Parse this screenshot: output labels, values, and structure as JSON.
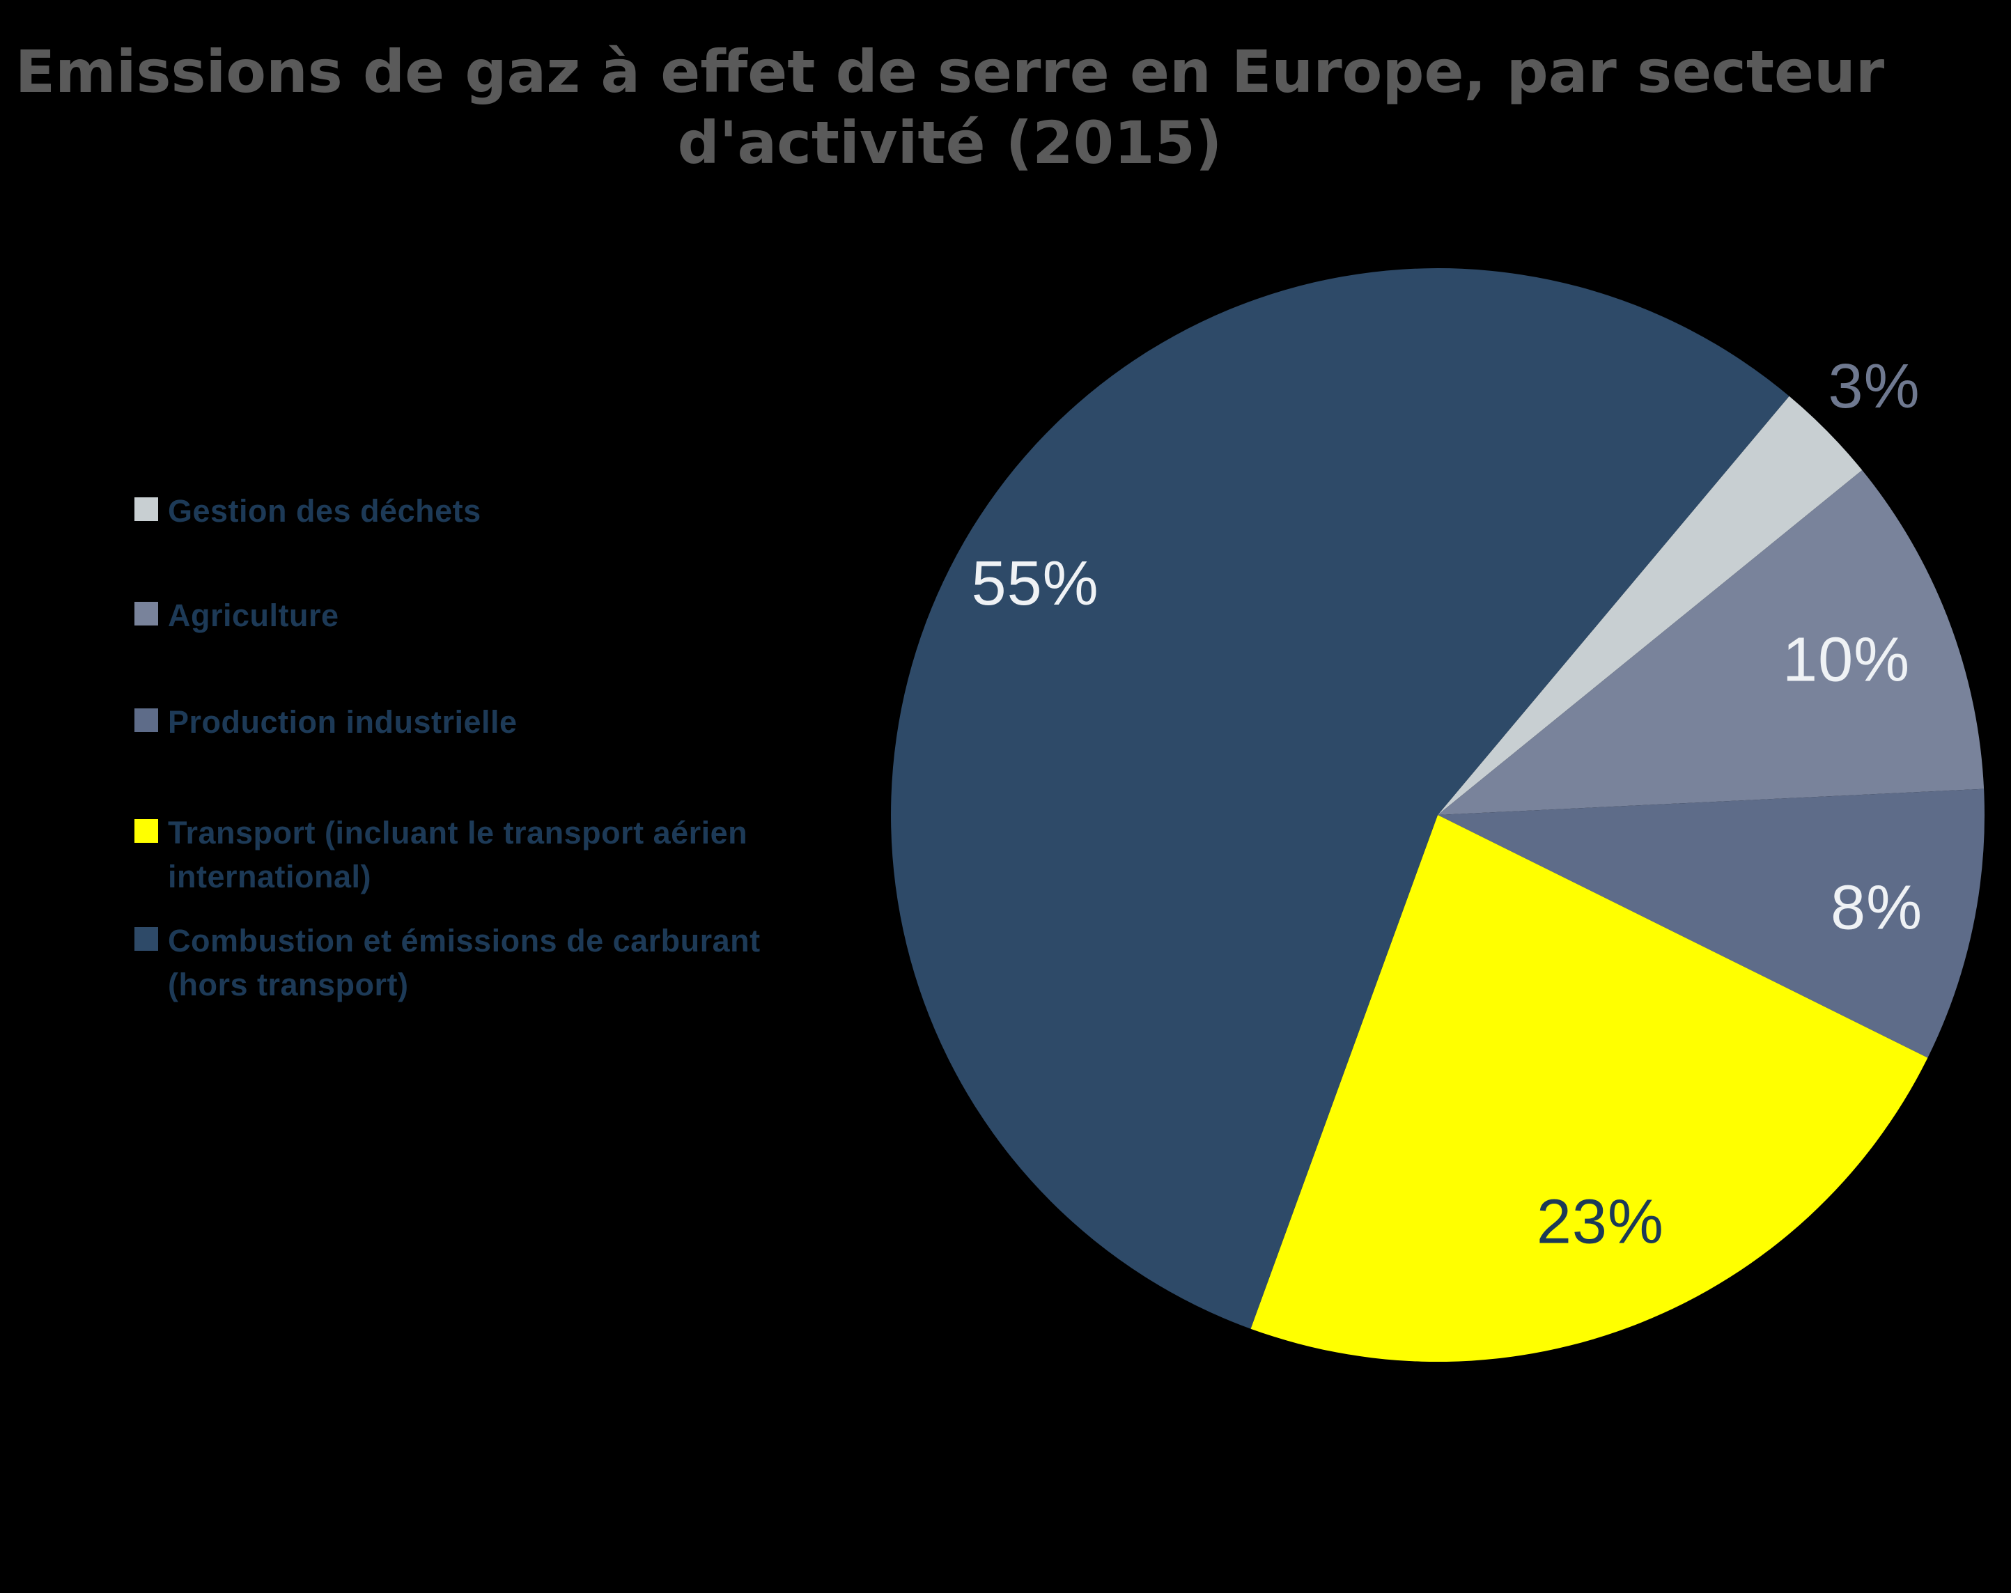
{
  "title": {
    "lines": [
      "Emissions de gaz à effet de serre en Europe, par secteur",
      "d'activité (2015)"
    ],
    "color": "#5A5A5A"
  },
  "legend": {
    "text_color": "#1D3A57",
    "items": [
      {
        "lines": [
          "Gestion des déchets",
          ""
        ],
        "color": "#C8CFD2"
      },
      {
        "lines": [
          "Agriculture",
          ""
        ],
        "color": "#79839B"
      },
      {
        "lines": [
          "Production industrielle",
          ""
        ],
        "color": "#5E6C89"
      },
      {
        "lines": [
          "Transport (incluant le transport aérien",
          "international)"
        ],
        "color": "#FFFF00"
      },
      {
        "lines": [
          "Combustion et émissions de carburant",
          "(hors transport)"
        ],
        "color": "#2E4A68"
      }
    ]
  },
  "chart_data": {
    "type": "pie",
    "title": "Emissions de gaz à effet de serre en Europe, par secteur d'activité (2015)",
    "year": "2015",
    "unit": "%",
    "categories": [
      "Gestion des déchets",
      "Agriculture",
      "Production industrielle",
      "Transport (incluant le transport aérien international)",
      "Combustion et émissions de carburant (hors transport)"
    ],
    "values": [
      3,
      10,
      8,
      23,
      55
    ],
    "colors": [
      "#C8CFD2",
      "#79839B",
      "#5E6C89",
      "#FFFF00",
      "#2E4A68"
    ],
    "slice_labels": [
      "3%",
      "10%",
      "8%",
      "23%",
      "55%"
    ],
    "slice_label_colors": [
      "#6F7990",
      "#EFF2F5",
      "#EFF2F5",
      "#1C3A57",
      "#EFF2F5"
    ],
    "slice_label_radius_frac": [
      1.12,
      0.8,
      0.82,
      0.8,
      0.85
    ],
    "slice_label_outside": [
      true,
      false,
      false,
      false,
      false
    ],
    "start_angle_deg": 40,
    "direction": "clockwise",
    "legend_position": "left",
    "background": "#000000"
  }
}
